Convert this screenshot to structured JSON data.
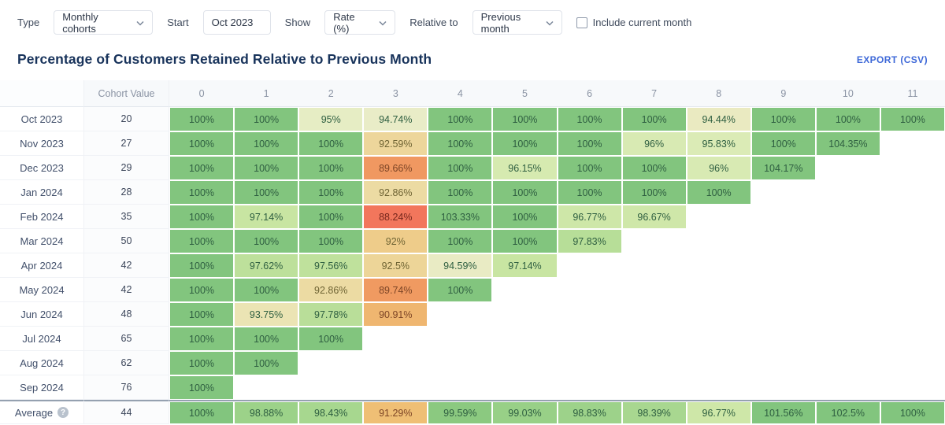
{
  "controls": {
    "type_label": "Type",
    "type_value": "Monthly cohorts",
    "start_label": "Start",
    "start_value": "Oct 2023",
    "show_label": "Show",
    "show_value": "Rate (%)",
    "relative_label": "Relative to",
    "relative_value": "Previous month",
    "include_current_month_label": "Include current month",
    "include_current_month_checked": false
  },
  "header": {
    "title": "Percentage of Customers Retained Relative to Previous Month",
    "export_label": "EXPORT (CSV)"
  },
  "table": {
    "cohort_value_label": "Cohort Value",
    "period_headers": [
      "0",
      "1",
      "2",
      "3",
      "4",
      "5",
      "6",
      "7",
      "8",
      "9",
      "10",
      "11"
    ],
    "rows": [
      {
        "label": "Oct 2023",
        "value": "20",
        "cells": [
          "100%",
          "100%",
          "95%",
          "94.74%",
          "100%",
          "100%",
          "100%",
          "100%",
          "94.44%",
          "100%",
          "100%",
          "100%"
        ]
      },
      {
        "label": "Nov 2023",
        "value": "27",
        "cells": [
          "100%",
          "100%",
          "100%",
          "92.59%",
          "100%",
          "100%",
          "100%",
          "96%",
          "95.83%",
          "100%",
          "104.35%"
        ]
      },
      {
        "label": "Dec 2023",
        "value": "29",
        "cells": [
          "100%",
          "100%",
          "100%",
          "89.66%",
          "100%",
          "96.15%",
          "100%",
          "100%",
          "96%",
          "104.17%"
        ]
      },
      {
        "label": "Jan 2024",
        "value": "28",
        "cells": [
          "100%",
          "100%",
          "100%",
          "92.86%",
          "100%",
          "100%",
          "100%",
          "100%",
          "100%"
        ]
      },
      {
        "label": "Feb 2024",
        "value": "35",
        "cells": [
          "100%",
          "97.14%",
          "100%",
          "88.24%",
          "103.33%",
          "100%",
          "96.77%",
          "96.67%"
        ]
      },
      {
        "label": "Mar 2024",
        "value": "50",
        "cells": [
          "100%",
          "100%",
          "100%",
          "92%",
          "100%",
          "100%",
          "97.83%"
        ]
      },
      {
        "label": "Apr 2024",
        "value": "42",
        "cells": [
          "100%",
          "97.62%",
          "97.56%",
          "92.5%",
          "94.59%",
          "97.14%"
        ]
      },
      {
        "label": "May 2024",
        "value": "42",
        "cells": [
          "100%",
          "100%",
          "92.86%",
          "89.74%",
          "100%"
        ]
      },
      {
        "label": "Jun 2024",
        "value": "48",
        "cells": [
          "100%",
          "93.75%",
          "97.78%",
          "90.91%"
        ]
      },
      {
        "label": "Jul 2024",
        "value": "65",
        "cells": [
          "100%",
          "100%",
          "100%"
        ]
      },
      {
        "label": "Aug 2024",
        "value": "62",
        "cells": [
          "100%",
          "100%"
        ]
      },
      {
        "label": "Sep 2024",
        "value": "76",
        "cells": [
          "100%"
        ]
      }
    ],
    "average": {
      "label": "Average",
      "help_icon": "?",
      "value": "44",
      "cells": [
        "100%",
        "98.88%",
        "98.43%",
        "91.29%",
        "99.59%",
        "99.03%",
        "98.83%",
        "98.39%",
        "96.77%",
        "101.56%",
        "102.5%",
        "100%"
      ]
    }
  },
  "colors": {
    "accent_blue": "#3d68d8",
    "title_navy": "#18335b",
    "scale": [
      [
        88.0,
        "#f2705b"
      ],
      [
        89.8,
        "#f09b61"
      ],
      [
        91.3,
        "#efbf75"
      ],
      [
        92.9,
        "#ecdca4"
      ],
      [
        94.8,
        "#e9edc8"
      ],
      [
        96.1,
        "#d7eab1"
      ],
      [
        97.3,
        "#c6e4a0"
      ],
      [
        98.5,
        "#a5d68e"
      ],
      [
        99.6,
        "#8bc980"
      ],
      [
        100.0,
        "#82c57e"
      ]
    ],
    "cell_text_green": "#2f5f41",
    "cell_text_olive": "#6f6434",
    "cell_text_brown": "#7d4526",
    "cell_text_red": "#76271c"
  }
}
